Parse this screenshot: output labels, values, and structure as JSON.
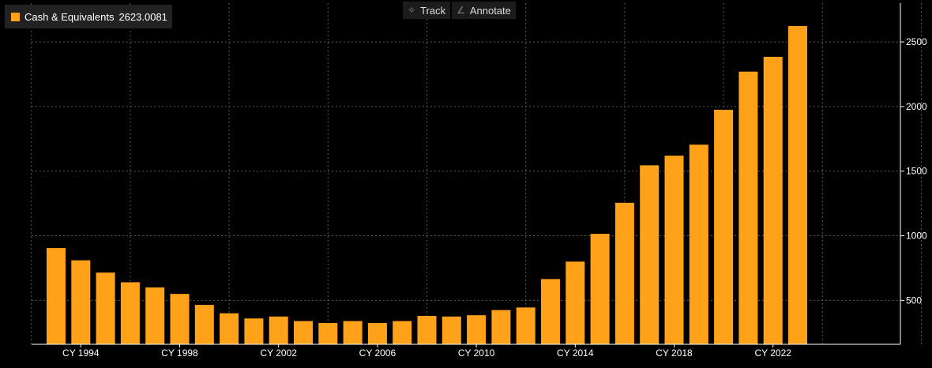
{
  "toolbar": {
    "track_label": "Track",
    "annotate_label": "Annotate"
  },
  "legend": {
    "label": "Cash & Equivalents",
    "value": "2623.0081",
    "color": "#ffa21a"
  },
  "colors": {
    "background": "#000000",
    "bar": "#ffa21a",
    "grid": "#5a5a5a",
    "axis": "#ffffff"
  },
  "chart_data": {
    "type": "bar",
    "title": "",
    "xlabel": "",
    "ylabel": "",
    "grid": true,
    "legend_position": "top-left",
    "y_axis_side": "right",
    "ylim": [
      160,
      2800
    ],
    "yticks": [
      500,
      1000,
      1500,
      2000,
      2500
    ],
    "xticks": [
      "CY 1994",
      "CY 1998",
      "CY 2002",
      "CY 2006",
      "CY 2010",
      "CY 2014",
      "CY 2018",
      "CY 2022"
    ],
    "categories": [
      "CY 1993",
      "CY 1994",
      "CY 1995",
      "CY 1996",
      "CY 1997",
      "CY 1998",
      "CY 1999",
      "CY 2000",
      "CY 2001",
      "CY 2002",
      "CY 2003",
      "CY 2004",
      "CY 2005",
      "CY 2006",
      "CY 2007",
      "CY 2008",
      "CY 2009",
      "CY 2010",
      "CY 2011",
      "CY 2012",
      "CY 2013",
      "CY 2014",
      "CY 2015",
      "CY 2016",
      "CY 2017",
      "CY 2018",
      "CY 2019",
      "CY 2020",
      "CY 2021",
      "CY 2022",
      "CY 2023"
    ],
    "series": [
      {
        "name": "Cash & Equivalents",
        "values": [
          905,
          810,
          715,
          640,
          600,
          550,
          465,
          400,
          360,
          375,
          340,
          325,
          340,
          325,
          340,
          380,
          375,
          385,
          425,
          445,
          665,
          800,
          1015,
          1255,
          1545,
          1620,
          1705,
          1975,
          2270,
          2385,
          2623.0081
        ]
      }
    ]
  }
}
